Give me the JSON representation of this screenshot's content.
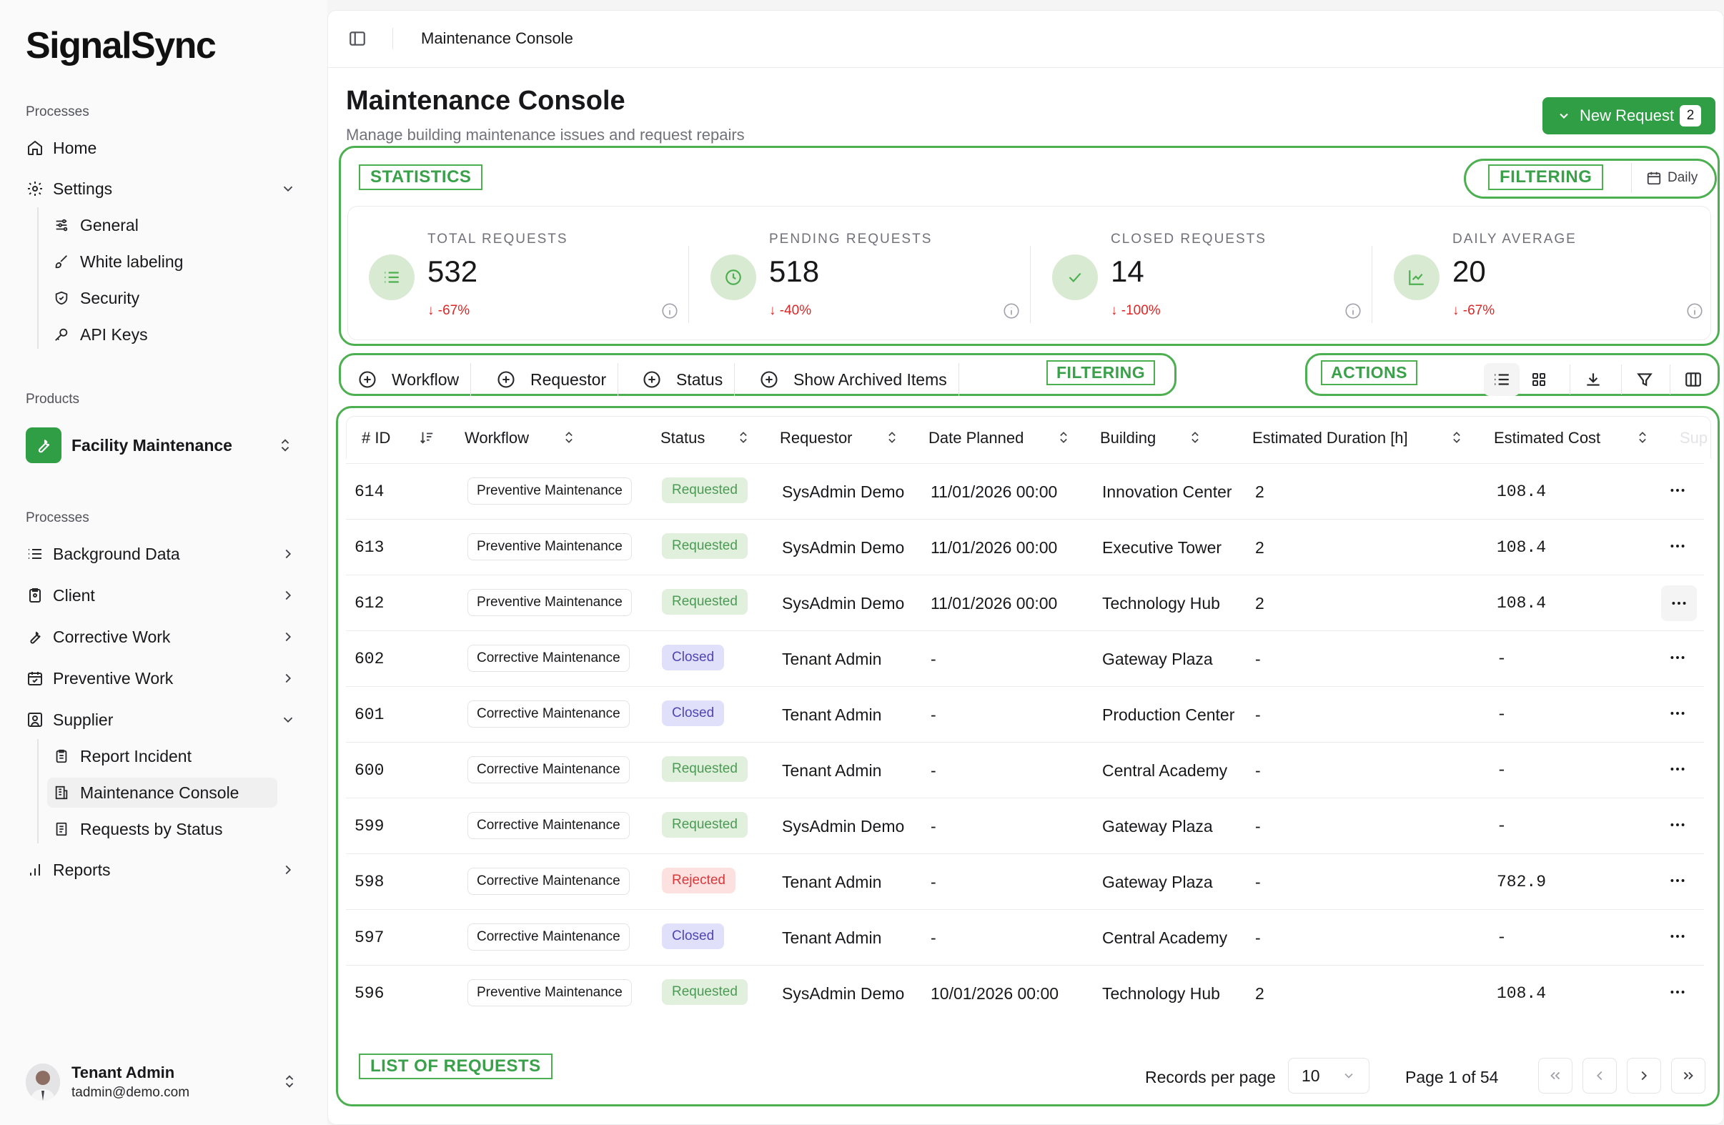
{
  "app": {
    "name": "SignalSync"
  },
  "sidebar": {
    "group1_title": "Processes",
    "home": "Home",
    "settings": "Settings",
    "settings_items": [
      "General",
      "White labeling",
      "Security",
      "API Keys"
    ],
    "products_title": "Products",
    "product": "Facility Maintenance",
    "group2_title": "Processes",
    "processes": [
      "Background Data",
      "Client",
      "Corrective Work",
      "Preventive Work",
      "Supplier"
    ],
    "supplier_items": [
      "Report Incident",
      "Maintenance Console",
      "Requests by Status"
    ],
    "reports": "Reports",
    "user": {
      "name": "Tenant Admin",
      "email": "tadmin@demo.com"
    }
  },
  "header": {
    "breadcrumb": "Maintenance Console"
  },
  "page": {
    "title": "Maintenance Console",
    "subtitle": "Manage building maintenance issues and request repairs",
    "new_request_label": "New Request",
    "new_request_count": "2"
  },
  "annotations": {
    "statistics": "STATISTICS",
    "filtering_top": "FILTERING",
    "filtering": "FILTERING",
    "actions": "ACTIONS",
    "list": "LIST OF REQUESTS"
  },
  "period": "Daily",
  "stats": [
    {
      "label": "TOTAL REQUESTS",
      "value": "532",
      "change": "-67%",
      "icon": "list-icon"
    },
    {
      "label": "PENDING REQUESTS",
      "value": "518",
      "change": "-40%",
      "icon": "clock-icon"
    },
    {
      "label": "CLOSED REQUESTS",
      "value": "14",
      "change": "-100%",
      "icon": "check-icon"
    },
    {
      "label": "DAILY AVERAGE",
      "value": "20",
      "change": "-67%",
      "icon": "trend-chart-icon"
    }
  ],
  "filters": [
    "Workflow",
    "Requestor",
    "Status",
    "Show Archived Items"
  ],
  "table": {
    "columns": [
      "# ID",
      "Workflow",
      "Status",
      "Requestor",
      "Date Planned",
      "Building",
      "Estimated Duration [h]",
      "Estimated Cost",
      "Sup"
    ],
    "rows": [
      {
        "id": "614",
        "workflow": "Preventive Maintenance",
        "status": "Requested",
        "requestor": "SysAdmin Demo",
        "date": "11/01/2026 00:00",
        "building": "Innovation Center",
        "duration": "2",
        "cost": "108.4"
      },
      {
        "id": "613",
        "workflow": "Preventive Maintenance",
        "status": "Requested",
        "requestor": "SysAdmin Demo",
        "date": "11/01/2026 00:00",
        "building": "Executive Tower",
        "duration": "2",
        "cost": "108.4"
      },
      {
        "id": "612",
        "workflow": "Preventive Maintenance",
        "status": "Requested",
        "requestor": "SysAdmin Demo",
        "date": "11/01/2026 00:00",
        "building": "Technology Hub",
        "duration": "2",
        "cost": "108.4"
      },
      {
        "id": "602",
        "workflow": "Corrective Maintenance",
        "status": "Closed",
        "requestor": "Tenant Admin",
        "date": "-",
        "building": "Gateway Plaza",
        "duration": "-",
        "cost": "-"
      },
      {
        "id": "601",
        "workflow": "Corrective Maintenance",
        "status": "Closed",
        "requestor": "Tenant Admin",
        "date": "-",
        "building": "Production Center",
        "duration": "-",
        "cost": "-"
      },
      {
        "id": "600",
        "workflow": "Corrective Maintenance",
        "status": "Requested",
        "requestor": "Tenant Admin",
        "date": "-",
        "building": "Central Academy",
        "duration": "-",
        "cost": "-"
      },
      {
        "id": "599",
        "workflow": "Corrective Maintenance",
        "status": "Requested",
        "requestor": "SysAdmin Demo",
        "date": "-",
        "building": "Gateway Plaza",
        "duration": "-",
        "cost": "-"
      },
      {
        "id": "598",
        "workflow": "Corrective Maintenance",
        "status": "Rejected",
        "requestor": "Tenant Admin",
        "date": "-",
        "building": "Gateway Plaza",
        "duration": "-",
        "cost": "782.9"
      },
      {
        "id": "597",
        "workflow": "Corrective Maintenance",
        "status": "Closed",
        "requestor": "Tenant Admin",
        "date": "-",
        "building": "Central Academy",
        "duration": "-",
        "cost": "-"
      },
      {
        "id": "596",
        "workflow": "Preventive Maintenance",
        "status": "Requested",
        "requestor": "SysAdmin Demo",
        "date": "10/01/2026 00:00",
        "building": "Technology Hub",
        "duration": "2",
        "cost": "108.4"
      }
    ]
  },
  "pagination": {
    "records_label": "Records per page",
    "per_page": "10",
    "page_info": "Page 1 of 54"
  },
  "colors": {
    "accent": "#2f9e44",
    "annotation": "#4caf50",
    "negative": "#dc2626"
  }
}
